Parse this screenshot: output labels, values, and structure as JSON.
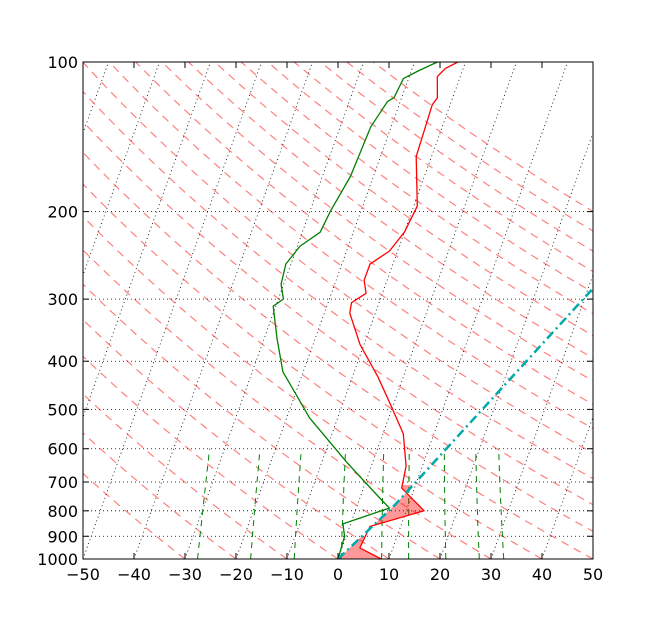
{
  "chart_data": {
    "type": "line",
    "title": "",
    "xlabel": "",
    "ylabel": "",
    "xlim": [
      -50,
      50
    ],
    "ylim": [
      1000,
      100
    ],
    "yscale": "log",
    "grid": true,
    "x_ticks": [
      -50,
      -40,
      -30,
      -20,
      -10,
      0,
      10,
      20,
      30,
      40,
      50
    ],
    "x_tick_labels": [
      "−50",
      "−40",
      "−30",
      "−20",
      "−10",
      "0",
      "10",
      "20",
      "30",
      "40",
      "50"
    ],
    "y_ticks": [
      1000,
      900,
      800,
      700,
      600,
      500,
      400,
      300,
      200,
      100
    ],
    "y_tick_labels": [
      "1000",
      "900",
      "800",
      "700",
      "600",
      "500",
      "400",
      "300",
      "200",
      "100"
    ],
    "series": [
      {
        "role": "temperature",
        "color": "#ff0000",
        "style": "solid",
        "points": [
          [
            8.5,
            1000
          ],
          [
            3.5,
            950
          ],
          [
            4.0,
            860
          ],
          [
            13.5,
            800
          ],
          [
            7.5,
            720
          ],
          [
            6.8,
            650
          ],
          [
            4.0,
            560
          ],
          [
            -0.5,
            490
          ],
          [
            -5.0,
            430
          ],
          [
            -10.8,
            370
          ],
          [
            -15.0,
            320
          ],
          [
            -15.4,
            305
          ],
          [
            -13.2,
            292
          ],
          [
            -14.5,
            275
          ],
          [
            -14.5,
            255
          ],
          [
            -11.6,
            240
          ],
          [
            -10.0,
            220
          ],
          [
            -9.3,
            195
          ],
          [
            -13.0,
            155
          ],
          [
            -13.3,
            135
          ],
          [
            -13.5,
            122
          ],
          [
            -13.0,
            118
          ],
          [
            -14.5,
            107
          ],
          [
            -13.5,
            103
          ],
          [
            -11.5,
            100
          ]
        ]
      },
      {
        "role": "dewpoint",
        "color": "#008000",
        "style": "solid",
        "points": [
          [
            0,
            1000
          ],
          [
            -0.3,
            900
          ],
          [
            -1.5,
            850
          ],
          [
            6.5,
            790
          ],
          [
            2.5,
            735
          ],
          [
            -5.0,
            640
          ],
          [
            -15.5,
            520
          ],
          [
            -24.0,
            420
          ],
          [
            -27.5,
            360
          ],
          [
            -30.5,
            310
          ],
          [
            -29.0,
            300
          ],
          [
            -30.5,
            280
          ],
          [
            -31.0,
            255
          ],
          [
            -29.5,
            235
          ],
          [
            -26.5,
            220
          ],
          [
            -26.0,
            200
          ],
          [
            -24.5,
            170
          ],
          [
            -24.0,
            135
          ],
          [
            -22.5,
            120
          ],
          [
            -21.5,
            118
          ],
          [
            -21.0,
            108
          ],
          [
            -18.5,
            104
          ],
          [
            -15.5,
            100
          ]
        ]
      },
      {
        "role": "parcel",
        "color": "#00aaaa",
        "style": "dash-dot",
        "points": [
          [
            0,
            1000
          ],
          [
            7.3,
            780
          ],
          [
            50,
            127
          ]
        ]
      }
    ],
    "shaded_regions": [
      {
        "role": "negative-area",
        "color": "#ff0000",
        "opacity": 0.4,
        "pressure_from": 1000,
        "pressure_to": 900
      },
      {
        "role": "positive-area",
        "color": "#ff0000",
        "opacity": 0.4,
        "pressure_from": 860,
        "pressure_to": 710
      }
    ],
    "reference_lines": {
      "isotherms": {
        "color": "#000000",
        "style": "dotted"
      },
      "dry_adiabats": {
        "color": "#ff0000",
        "style": "dashed",
        "alpha": 0.5
      },
      "mixing_ratio": {
        "color": "#008000",
        "style": "dashed",
        "top_pressure": 600
      }
    }
  }
}
